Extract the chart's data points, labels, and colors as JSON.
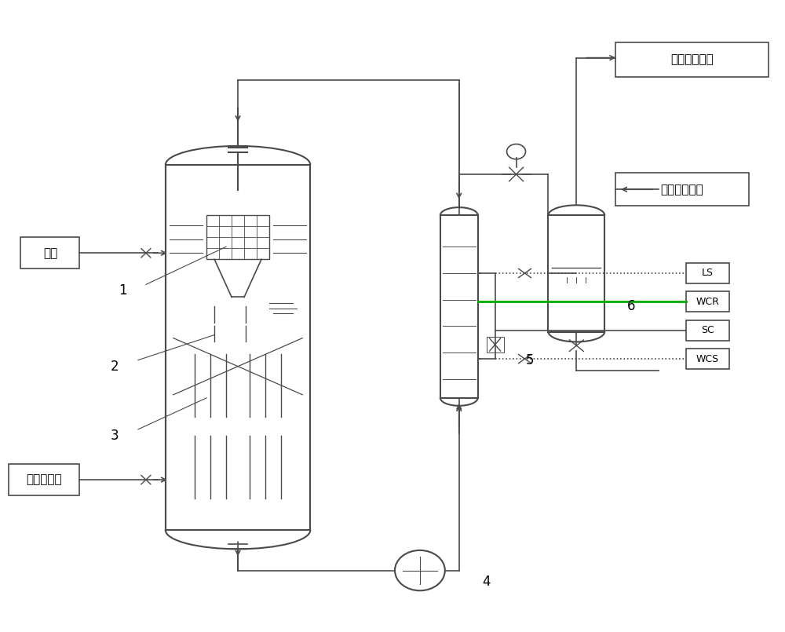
{
  "bg_color": "#ffffff",
  "line_color": "#4a4a4a",
  "line_width": 1.2,
  "green_line_color": "#00aa00",
  "labels": {
    "ganyu": "甘油",
    "hcl_gas": "氯化氢气体",
    "gas_to_condenser": "气相至冷凝器",
    "next_reactor": "下一个反应釜",
    "label1": "1",
    "label2": "2",
    "label3": "3",
    "label4": "4",
    "label5": "5",
    "label6": "6",
    "ls": "LS",
    "wcr": "WCR",
    "sc": "SC",
    "wcs": "WCS"
  },
  "font_size": 11,
  "small_font_size": 9
}
